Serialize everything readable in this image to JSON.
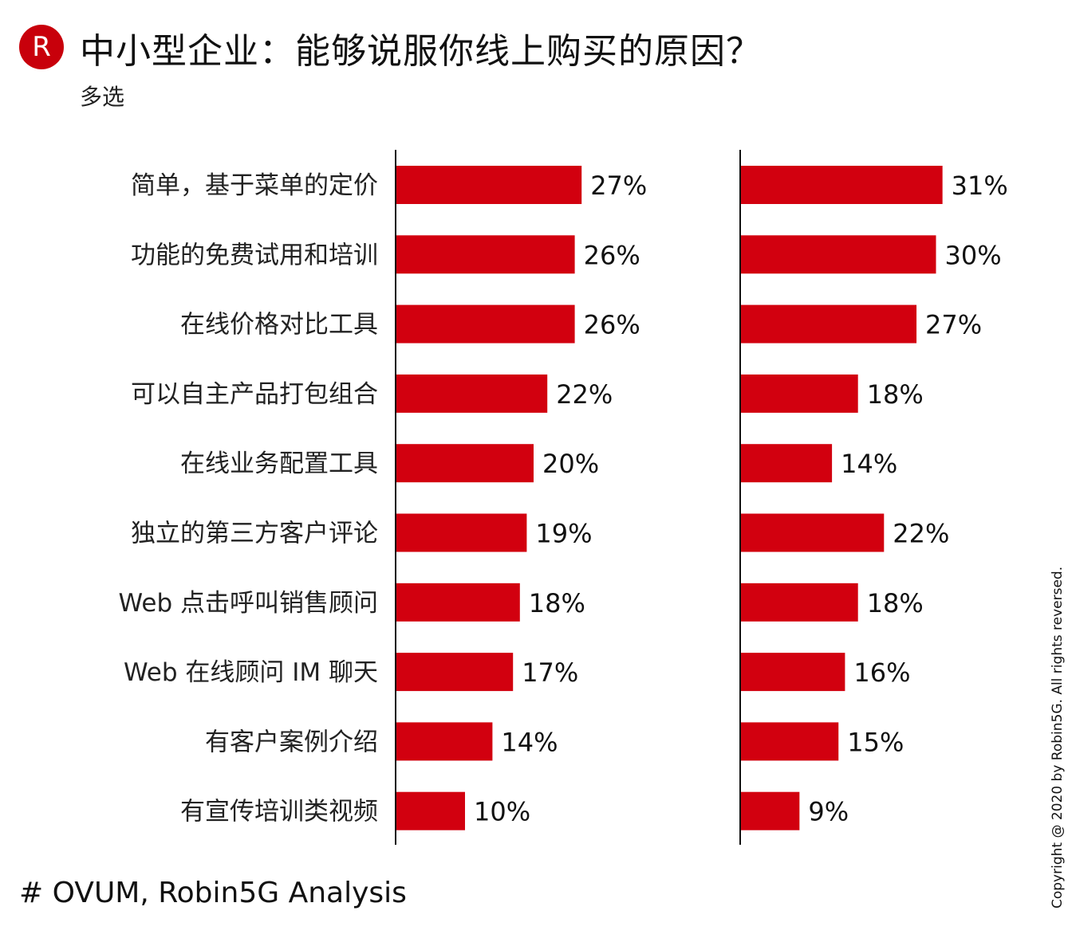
{
  "header": {
    "logo_letter": "R",
    "title": "中小型企业：能够说服你线上购买的原因？",
    "subtitle": "多选"
  },
  "footer": {
    "source": "# OVUM, Robin5G Analysis",
    "copyright": "Copyright @ 2020 by Robin5G. All rights reversed."
  },
  "colors": {
    "bar": "#d2000f",
    "axis": "#111111"
  },
  "chart_data": {
    "type": "bar",
    "orientation": "horizontal",
    "title": "中小型企业：能够说服你线上购买的原因？",
    "subtitle": "多选",
    "unit": "%",
    "categories": [
      "简单，基于菜单的定价",
      "功能的免费试用和培训",
      "在线价格对比工具",
      "可以自主产品打包组合",
      "在线业务配置工具",
      "独立的第三方客户评论",
      "Web 点击呼叫销售顾问",
      "Web 在线顾问 IM 聊天",
      "有客户案例介绍",
      "有宣传培训类视频"
    ],
    "series": [
      {
        "name": "panel-1",
        "values": [
          27,
          26,
          26,
          22,
          20,
          19,
          18,
          17,
          14,
          10
        ]
      },
      {
        "name": "panel-2",
        "values": [
          31,
          30,
          27,
          18,
          14,
          22,
          18,
          16,
          15,
          9
        ]
      }
    ],
    "labels": [
      [
        "27%",
        "26%",
        "26%",
        "22%",
        "20%",
        "19%",
        "18%",
        "17%",
        "14%",
        "10%"
      ],
      [
        "31%",
        "30%",
        "27%",
        "18%",
        "14%",
        "22%",
        "18%",
        "16%",
        "15%",
        "9%"
      ]
    ]
  }
}
